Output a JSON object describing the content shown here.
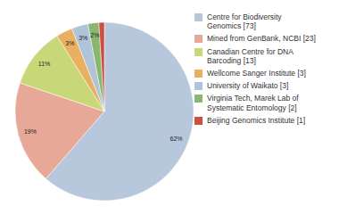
{
  "chart_data": {
    "type": "pie",
    "categories": [
      "Centre for Biodiversity\nGenomics [73]",
      "Mined from GenBank, NCBI [23]",
      "Canadian Centre for DNA\nBarcoding [13]",
      "Wellcome Sanger Institute [3]",
      "University of Waikato [3]",
      "Virginia Tech, Marek Lab of\nSystematic Entomology [2]",
      "Beijing Genomics Institute [1]"
    ],
    "values": [
      62,
      19,
      11,
      3,
      3,
      2,
      1
    ],
    "value_labels": [
      "62%",
      "19%",
      "11%",
      "3%",
      "3%",
      "2%",
      null
    ],
    "colors": [
      "#b8c8dc",
      "#e8a898",
      "#c8d878",
      "#e8b060",
      "#b0c4d8",
      "#88b870",
      "#cc5040"
    ],
    "data_labels": true,
    "legend": "upper right"
  }
}
